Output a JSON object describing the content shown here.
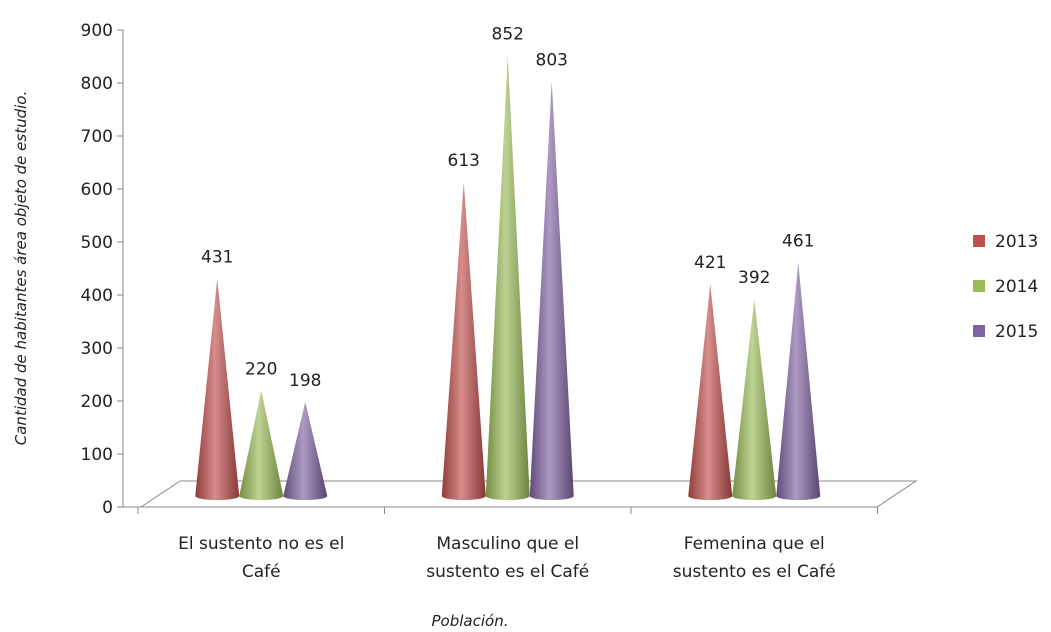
{
  "chart_data": {
    "type": "bar",
    "title": "",
    "xlabel": "Población.",
    "ylabel": "Cantidad de habitantes área objeto de estudio.",
    "categories": [
      [
        "El sustento no es el",
        "Café"
      ],
      [
        "Masculino que el",
        "sustento es el Café"
      ],
      [
        "Femenina que el",
        "sustento es el Café"
      ]
    ],
    "series": [
      {
        "name": "2013",
        "values": [
          431,
          613,
          421
        ],
        "color": "#c0504d"
      },
      {
        "name": "2014",
        "values": [
          220,
          852,
          392
        ],
        "color": "#9bbb59"
      },
      {
        "name": "2015",
        "values": [
          198,
          803,
          461
        ],
        "color": "#8064a2"
      }
    ],
    "ylim": [
      0,
      900
    ],
    "yticks": [
      0,
      100,
      200,
      300,
      400,
      500,
      600,
      700,
      800,
      900
    ],
    "grid": false,
    "legend": "right",
    "mark_shape": "cone"
  }
}
